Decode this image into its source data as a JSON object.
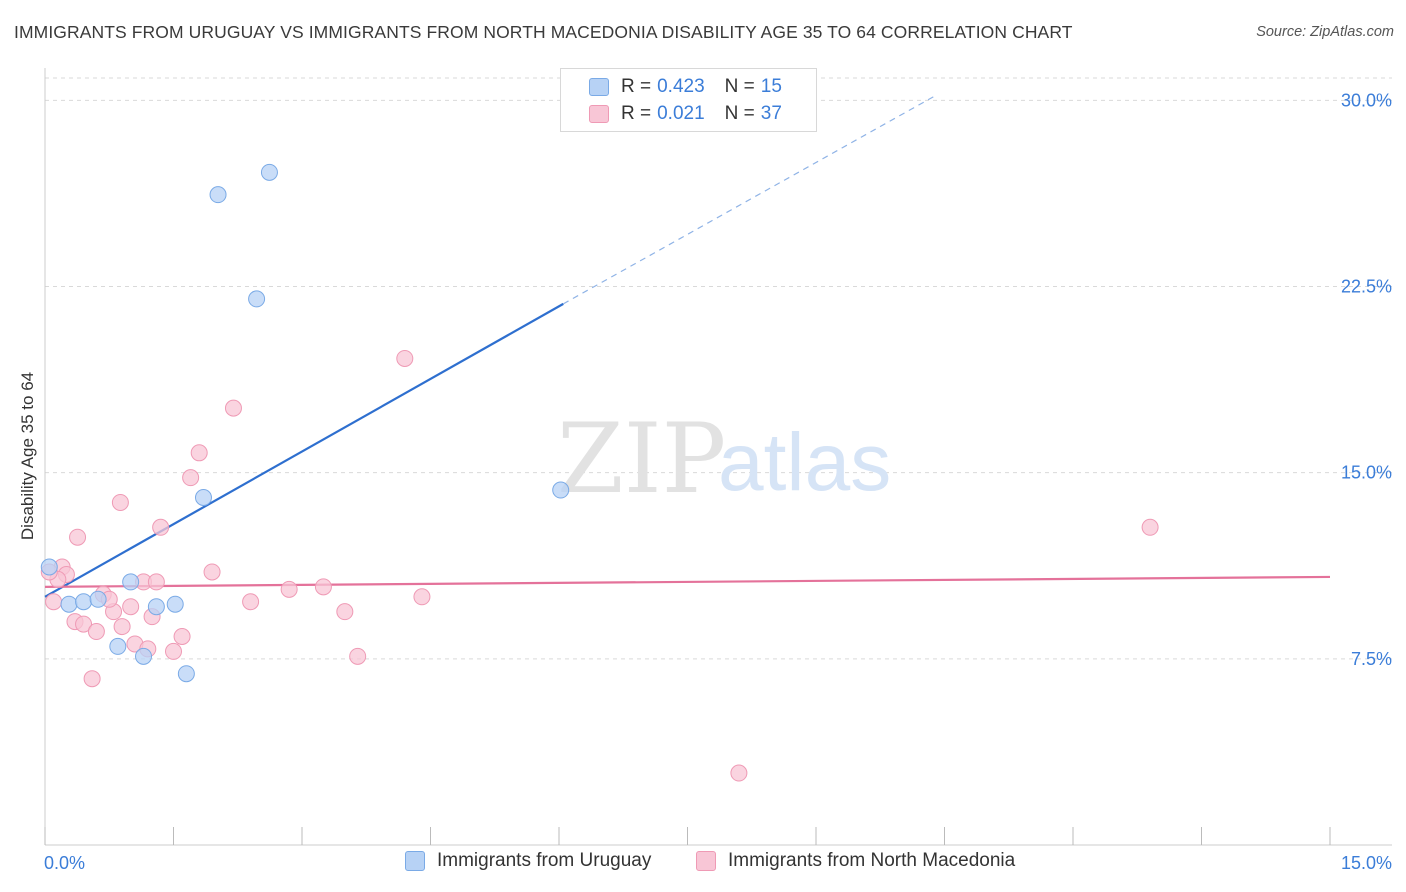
{
  "title": "IMMIGRANTS FROM URUGUAY VS IMMIGRANTS FROM NORTH MACEDONIA DISABILITY AGE 35 TO 64 CORRELATION CHART",
  "source": "Source: ZipAtlas.com",
  "watermark": {
    "zip": "ZIP",
    "atlas": "atlas"
  },
  "legend": {
    "rows": [
      {
        "r_label": "R =",
        "r_value": "0.423",
        "n_label": "N =",
        "n_value": "15"
      },
      {
        "r_label": "R =",
        "r_value": "0.021",
        "n_label": "N =",
        "n_value": "37"
      }
    ]
  },
  "bottom_legend": {
    "uruguay": "Immigrants from Uruguay",
    "macedonia": "Immigrants from North Macedonia"
  },
  "colors": {
    "blue_fill": "#b7d2f5",
    "blue_stroke": "#7aaae6",
    "blue_line": "#2e6fcf",
    "pink_fill": "#f8c6d6",
    "pink_stroke": "#ef9ab5",
    "pink_line": "#e4729a",
    "tick_label": "#3b7dd8",
    "grid": "#d9d9d9"
  },
  "chart_data": {
    "type": "scatter",
    "title": "IMMIGRANTS FROM URUGUAY VS IMMIGRANTS FROM NORTH MACEDONIA DISABILITY AGE 35 TO 64 CORRELATION CHART",
    "xlabel": "",
    "ylabel": "Disability Age 35 to 64",
    "xlim": [
      0,
      15
    ],
    "ylim": [
      0,
      30.9
    ],
    "x_tick_labels": [
      "0.0%",
      "15.0%"
    ],
    "y_ticks": [
      7.5,
      15.0,
      22.5,
      30.0
    ],
    "y_tick_labels": [
      "7.5%",
      "15.0%",
      "22.5%",
      "30.0%"
    ],
    "series": [
      {
        "name": "Immigrants from Uruguay",
        "color": "blue",
        "points": [
          [
            0.05,
            11.2
          ],
          [
            0.28,
            9.7
          ],
          [
            0.45,
            9.8
          ],
          [
            0.62,
            9.9
          ],
          [
            1.0,
            10.6
          ],
          [
            0.85,
            8.0
          ],
          [
            1.15,
            7.6
          ],
          [
            1.3,
            9.6
          ],
          [
            1.52,
            9.7
          ],
          [
            1.65,
            6.9
          ],
          [
            1.85,
            14.0
          ],
          [
            2.02,
            26.2
          ],
          [
            2.47,
            22.0
          ],
          [
            2.62,
            27.1
          ],
          [
            6.02,
            14.3
          ]
        ],
        "trend": {
          "x0": 0.0,
          "y0": 10.0,
          "x1": 6.05,
          "y1": 21.8,
          "dash_x1": 10.4,
          "dash_y1": 30.2
        }
      },
      {
        "name": "Immigrants from North Macedonia",
        "color": "pink",
        "points": [
          [
            0.1,
            9.8
          ],
          [
            0.2,
            11.2
          ],
          [
            0.25,
            10.9
          ],
          [
            0.35,
            9.0
          ],
          [
            0.38,
            12.4
          ],
          [
            0.45,
            8.9
          ],
          [
            0.55,
            6.7
          ],
          [
            0.6,
            8.6
          ],
          [
            0.68,
            10.1
          ],
          [
            0.8,
            9.4
          ],
          [
            0.9,
            8.8
          ],
          [
            1.0,
            9.6
          ],
          [
            1.05,
            8.1
          ],
          [
            1.15,
            10.6
          ],
          [
            1.2,
            7.9
          ],
          [
            1.25,
            9.2
          ],
          [
            1.35,
            12.8
          ],
          [
            1.5,
            7.8
          ],
          [
            1.6,
            8.4
          ],
          [
            0.88,
            13.8
          ],
          [
            1.7,
            14.8
          ],
          [
            1.8,
            15.8
          ],
          [
            1.95,
            11.0
          ],
          [
            2.2,
            17.6
          ],
          [
            2.4,
            9.8
          ],
          [
            2.85,
            10.3
          ],
          [
            3.25,
            10.4
          ],
          [
            3.5,
            9.4
          ],
          [
            3.65,
            7.6
          ],
          [
            4.2,
            19.6
          ],
          [
            4.4,
            10.0
          ],
          [
            8.1,
            2.9
          ],
          [
            12.9,
            12.8
          ],
          [
            0.75,
            9.9
          ],
          [
            0.15,
            10.7
          ],
          [
            1.3,
            10.6
          ],
          [
            0.05,
            11.0
          ]
        ],
        "trend": {
          "x0": 0.0,
          "y0": 10.4,
          "x1": 15.0,
          "y1": 10.8
        }
      }
    ],
    "legend_position": "top-center",
    "grid": true
  }
}
